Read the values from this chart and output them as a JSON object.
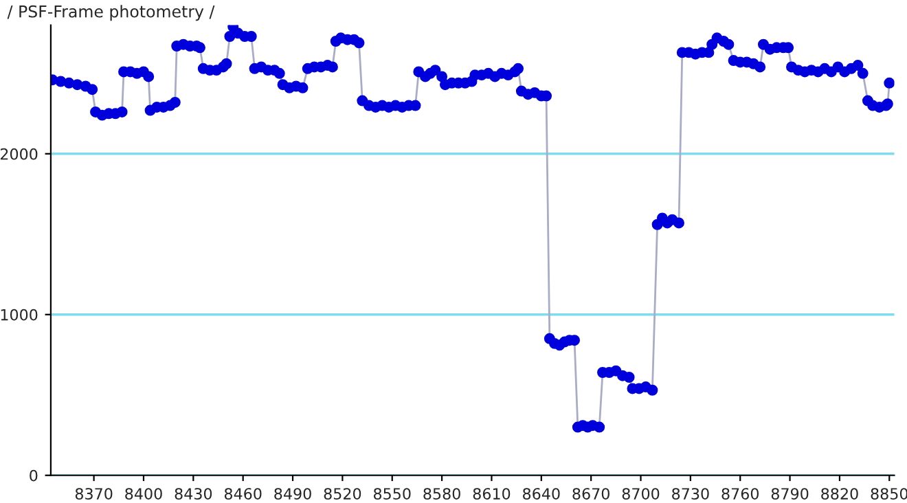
{
  "chart_data": {
    "type": "line",
    "title": "/ PSF-Frame photometry /",
    "x": [
      8345,
      8350,
      8355,
      8360,
      8365,
      8369,
      8371,
      8375,
      8379,
      8383,
      8387,
      8388,
      8392,
      8396,
      8400,
      8403,
      8404,
      8408,
      8412,
      8416,
      8419,
      8420,
      8424,
      8428,
      8432,
      8434,
      8436,
      8440,
      8444,
      8448,
      8450,
      8452,
      8454,
      8457,
      8461,
      8465,
      8467,
      8471,
      8475,
      8479,
      8482,
      8484,
      8488,
      8492,
      8496,
      8499,
      8503,
      8507,
      8511,
      8514,
      8516,
      8519,
      8523,
      8527,
      8530,
      8532,
      8536,
      8540,
      8544,
      8548,
      8552,
      8556,
      8560,
      8564,
      8566,
      8570,
      8573,
      8576,
      8580,
      8582,
      8586,
      8590,
      8594,
      8598,
      8600,
      8604,
      8608,
      8612,
      8616,
      8620,
      8624,
      8626,
      8628,
      8632,
      8636,
      8640,
      8643,
      8645,
      8648,
      8651,
      8654,
      8657,
      8660,
      8662,
      8665,
      8668,
      8671,
      8675,
      8677,
      8681,
      8685,
      8689,
      8693,
      8695,
      8699,
      8703,
      8707,
      8710,
      8713,
      8716,
      8719,
      8723,
      8725,
      8729,
      8733,
      8737,
      8741,
      8743,
      8746,
      8750,
      8753,
      8756,
      8760,
      8764,
      8768,
      8772,
      8774,
      8778,
      8782,
      8786,
      8789,
      8791,
      8795,
      8799,
      8803,
      8807,
      8811,
      8815,
      8819,
      8823,
      8827,
      8831,
      8834,
      8837,
      8840,
      8844,
      8848,
      8849,
      8850
    ],
    "series": [
      {
        "color": "#0000dd",
        "values": [
          2460,
          2450,
          2440,
          2430,
          2420,
          2400,
          2260,
          2240,
          2250,
          2250,
          2260,
          2510,
          2510,
          2500,
          2510,
          2480,
          2270,
          2290,
          2290,
          2300,
          2320,
          2670,
          2680,
          2670,
          2670,
          2660,
          2530,
          2520,
          2520,
          2540,
          2560,
          2730,
          2790,
          2750,
          2730,
          2730,
          2530,
          2540,
          2520,
          2520,
          2500,
          2430,
          2410,
          2420,
          2410,
          2530,
          2540,
          2540,
          2550,
          2540,
          2700,
          2720,
          2710,
          2710,
          2690,
          2330,
          2300,
          2290,
          2300,
          2290,
          2300,
          2290,
          2300,
          2300,
          2510,
          2480,
          2500,
          2520,
          2480,
          2430,
          2440,
          2440,
          2440,
          2450,
          2490,
          2490,
          2500,
          2480,
          2500,
          2490,
          2510,
          2530,
          2390,
          2370,
          2380,
          2360,
          2360,
          850,
          820,
          810,
          830,
          840,
          840,
          300,
          310,
          300,
          310,
          300,
          640,
          640,
          650,
          620,
          610,
          540,
          540,
          550,
          530,
          1560,
          1600,
          1570,
          1590,
          1570,
          2630,
          2630,
          2620,
          2630,
          2630,
          2680,
          2720,
          2700,
          2680,
          2580,
          2570,
          2570,
          2560,
          2540,
          2680,
          2650,
          2660,
          2660,
          2660,
          2540,
          2520,
          2510,
          2520,
          2510,
          2530,
          2510,
          2540,
          2510,
          2530,
          2550,
          2500,
          2330,
          2300,
          2290,
          2300,
          2310,
          2440
        ]
      }
    ],
    "xlim": [
      8344,
      8853
    ],
    "ylim": [
      0,
      2800
    ],
    "xticks": [
      8370,
      8400,
      8430,
      8460,
      8490,
      8520,
      8550,
      8580,
      8610,
      8640,
      8670,
      8700,
      8730,
      8760,
      8790,
      8820,
      8850
    ],
    "yticks": [
      0,
      1000,
      2000
    ],
    "grid": "y",
    "marker": "circle",
    "line_style": "solid",
    "legend": false
  }
}
